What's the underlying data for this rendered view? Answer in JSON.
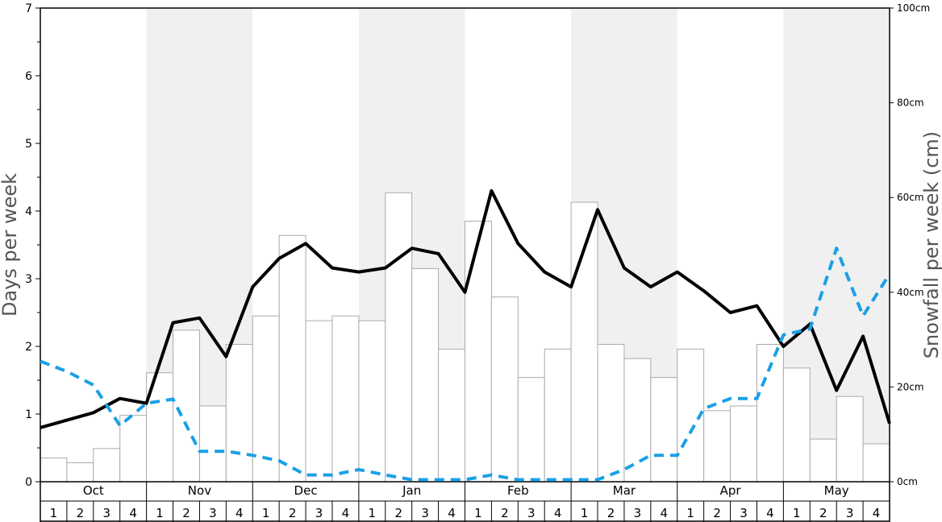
{
  "chart_data": {
    "type": "bar+line",
    "months": [
      "Oct",
      "Nov",
      "Dec",
      "Jan",
      "Feb",
      "Mar",
      "Apr",
      "May"
    ],
    "weeks": [
      "1",
      "2",
      "3",
      "4"
    ],
    "ylabel_left": "Days per week",
    "ylabel_right": "Snowfall per week (cm)",
    "left_ticks": [
      "0",
      "1",
      "2",
      "3",
      "4",
      "5",
      "6",
      "7"
    ],
    "right_ticks": [
      "0cm",
      "20cm",
      "40cm",
      "60cm",
      "80cm",
      "100cm"
    ],
    "ylim_left": [
      0,
      7
    ],
    "ylim_right": [
      0,
      100
    ],
    "shaded_months": [
      "Nov",
      "Jan",
      "Mar",
      "May"
    ],
    "series": [
      {
        "kind": "bar",
        "axis": "right",
        "values": [
          5,
          4,
          7,
          14,
          23,
          32,
          16,
          29,
          35,
          52,
          34,
          35,
          34,
          61,
          45,
          28,
          55,
          39,
          22,
          28,
          59,
          29,
          26,
          22,
          28,
          15,
          16,
          29,
          24,
          9,
          18,
          8
        ]
      },
      {
        "kind": "line",
        "axis": "left",
        "style": "solid",
        "color": "#000000",
        "values": [
          0.8,
          0.91,
          1.02,
          1.23,
          1.16,
          2.35,
          2.42,
          1.85,
          2.88,
          3.3,
          3.52,
          3.16,
          3.1,
          3.16,
          3.45,
          3.37,
          2.8,
          4.3,
          3.52,
          3.1,
          2.88,
          4.02,
          3.16,
          2.88,
          3.1,
          2.82,
          2.5,
          2.6,
          2.0,
          2.33,
          1.35,
          2.15,
          0.86
        ]
      },
      {
        "kind": "line",
        "axis": "left",
        "style": "dashed",
        "color": "#1aa0e6",
        "values": [
          1.78,
          1.63,
          1.43,
          0.83,
          1.16,
          1.22,
          0.45,
          0.45,
          0.39,
          0.31,
          0.1,
          0.1,
          0.18,
          0.1,
          0.03,
          0.03,
          0.03,
          0.1,
          0.03,
          0.03,
          0.03,
          0.03,
          0.18,
          0.39,
          0.39,
          1.08,
          1.23,
          1.23,
          2.17,
          2.26,
          3.45,
          2.45,
          3.07
        ]
      }
    ],
    "grid": false,
    "legend": "none"
  }
}
